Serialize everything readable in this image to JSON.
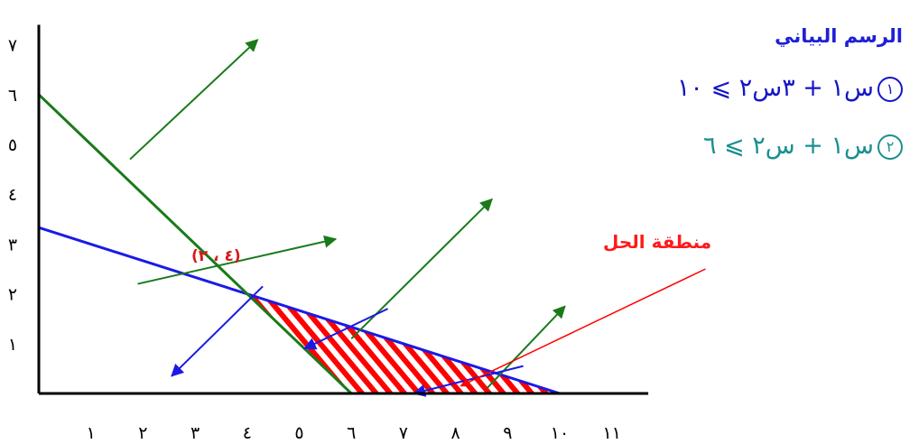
{
  "chart_data": {
    "type": "line",
    "title": "الرسم البياني",
    "xlabel": "",
    "ylabel": "",
    "xlim": [
      0,
      11.7
    ],
    "ylim": [
      0,
      7.4
    ],
    "x_ticks": [
      "١",
      "٢",
      "٣",
      "٤",
      "٥",
      "٦",
      "٧",
      "٨",
      "٩",
      "١٠",
      "١١"
    ],
    "y_ticks": [
      "١",
      "٢",
      "٣",
      "٤",
      "٥",
      "٦",
      "٧"
    ],
    "grid": false,
    "series": [
      {
        "name": "س١ + ٣س٢ ⩾ ١٠",
        "number": "١",
        "color": "#1a1ae6",
        "x": [
          0,
          10
        ],
        "y": [
          3.33,
          0
        ]
      },
      {
        "name": "س١ + س٢ ⩾ ٦",
        "number": "٢",
        "color": "#1a7a1a",
        "x": [
          0,
          6
        ],
        "y": [
          6,
          0
        ]
      }
    ],
    "feasible_region": {
      "label": "منطقة الحل",
      "polygon": [
        [
          4,
          2
        ],
        [
          10,
          0
        ],
        [
          6,
          0
        ]
      ],
      "color": "#ff0000"
    },
    "intersection_point": {
      "x": 4,
      "y": 2,
      "label": "(٤ ، ٢)"
    },
    "direction_arrows": [
      {
        "line": "2",
        "color": "#1a7a1a",
        "from": [
          1.75,
          4.7
        ],
        "to": [
          4.2,
          7.1
        ]
      },
      {
        "line": "2",
        "color": "#1a7a1a",
        "from": [
          6,
          1.1
        ],
        "to": [
          8.7,
          3.9
        ]
      },
      {
        "line": "2",
        "color": "#1a7a1a",
        "from": [
          1.9,
          2.2
        ],
        "to": [
          5.7,
          3.1
        ]
      },
      {
        "line": "2",
        "color": "#1a7a1a",
        "from": [
          8.6,
          0.1
        ],
        "to": [
          10.1,
          1.75
        ]
      },
      {
        "line": "1",
        "color": "#1a1ae6",
        "from": [
          4.3,
          2.15
        ],
        "to": [
          2.55,
          0.35
        ]
      },
      {
        "line": "1",
        "color": "#1a1ae6",
        "from": [
          6.7,
          1.7
        ],
        "to": [
          5.1,
          0.9
        ]
      },
      {
        "line": "1",
        "color": "#1a1ae6",
        "from": [
          9.3,
          0.55
        ],
        "to": [
          7.2,
          0.0
        ]
      }
    ],
    "annotation_arrows": [
      {
        "color": "#ff0000",
        "from": [
          12.8,
          2.5
        ],
        "to": [
          8.1,
          0.15
        ]
      }
    ]
  }
}
